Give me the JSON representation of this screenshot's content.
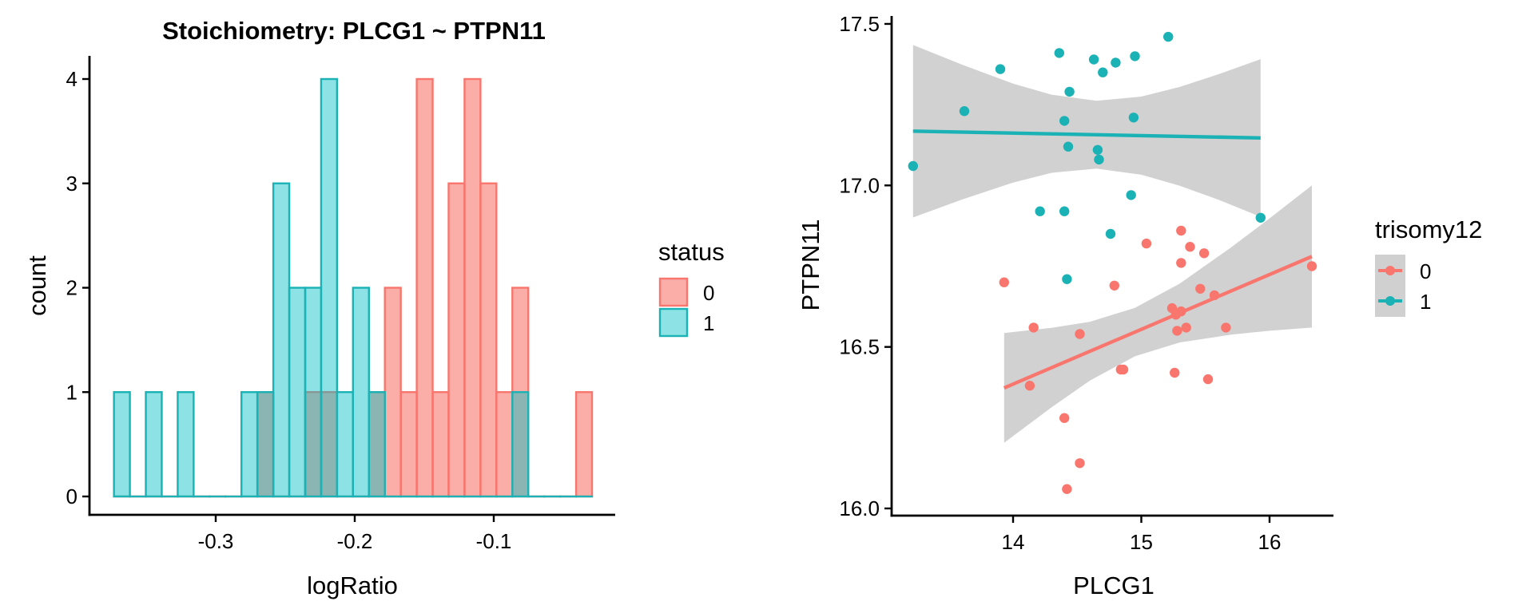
{
  "chart_data": [
    {
      "type": "histogram",
      "title": "Stoichiometry: PLCG1 ~ PTPN11",
      "xlabel": "logRatio",
      "ylabel": "count",
      "xlim": [
        -0.385,
        -0.0185
      ],
      "ylim": [
        -0.18,
        4.2
      ],
      "x_ticks": [
        -0.3,
        -0.2,
        -0.1
      ],
      "x_tick_labels": [
        "-0.3",
        "-0.2",
        "-0.1"
      ],
      "y_ticks": [
        0,
        1,
        2,
        3,
        4
      ],
      "y_tick_labels": [
        "0",
        "1",
        "2",
        "3",
        "4"
      ],
      "bins": {
        "start": -0.3732,
        "width": 0.011463,
        "count": 30
      },
      "grid": false,
      "legend": {
        "title": "status",
        "placement": "right",
        "entries": [
          {
            "label": "0",
            "fill": "#F8766D",
            "stroke": "#F8766D"
          },
          {
            "label": "1",
            "fill": "#00BFC4",
            "stroke": "#1AB2B5"
          }
        ]
      },
      "series": [
        {
          "name": "0",
          "color": "#F8766D",
          "values": [
            0,
            0,
            0,
            0,
            0,
            0,
            0,
            0,
            0,
            1,
            0,
            0,
            1,
            1,
            0,
            0,
            1,
            2,
            1,
            4,
            1,
            3,
            4,
            3,
            1,
            2,
            0,
            0,
            0,
            1
          ]
        },
        {
          "name": "1",
          "color": "#1AB2B5",
          "values": [
            1,
            0,
            1,
            0,
            1,
            0,
            0,
            0,
            1,
            1,
            3,
            2,
            2,
            4,
            1,
            2,
            1,
            0,
            0,
            0,
            0,
            0,
            0,
            0,
            0,
            1,
            0,
            0,
            0,
            0
          ]
        }
      ]
    },
    {
      "type": "scatter",
      "title": "",
      "xlabel": "PLCG1",
      "ylabel": "PTPN11",
      "xlim": [
        13.06,
        16.51
      ],
      "ylim": [
        15.98,
        17.52
      ],
      "x_ticks": [
        14,
        15,
        16
      ],
      "x_tick_labels": [
        "14",
        "15",
        "16"
      ],
      "y_ticks": [
        16.0,
        16.5,
        17.0,
        17.5
      ],
      "y_tick_labels": [
        "16.0",
        "16.5",
        "17.0",
        "17.5"
      ],
      "grid": false,
      "legend": {
        "title": "trisomy12",
        "placement": "right",
        "entries": [
          {
            "label": "0",
            "color": "#F8766D"
          },
          {
            "label": "1",
            "color": "#1AB2B5"
          }
        ]
      },
      "series": [
        {
          "name": "0",
          "color": "#F8766D",
          "points": [
            [
              15.04,
              16.82
            ],
            [
              13.93,
              16.7
            ],
            [
              14.79,
              16.69
            ],
            [
              14.16,
              16.56
            ],
            [
              14.52,
              16.54
            ],
            [
              14.84,
              16.43
            ],
            [
              14.86,
              16.43
            ],
            [
              14.13,
              16.38
            ],
            [
              15.31,
              16.86
            ],
            [
              15.38,
              16.81
            ],
            [
              15.49,
              16.79
            ],
            [
              15.31,
              16.76
            ],
            [
              16.33,
              16.75
            ],
            [
              15.46,
              16.68
            ],
            [
              15.57,
              16.66
            ],
            [
              15.24,
              16.62
            ],
            [
              15.31,
              16.61
            ],
            [
              15.27,
              16.6
            ],
            [
              15.35,
              16.56
            ],
            [
              15.28,
              16.55
            ],
            [
              15.66,
              16.56
            ],
            [
              15.26,
              16.42
            ],
            [
              15.52,
              16.4
            ],
            [
              14.4,
              16.28
            ],
            [
              14.52,
              16.14
            ],
            [
              14.42,
              16.06
            ]
          ],
          "fit": {
            "x": [
              13.93,
              16.33
            ],
            "y": [
              16.373,
              16.78
            ]
          },
          "band": {
            "x": [
              13.93,
              14.3,
              14.6,
              14.95,
              15.3,
              15.7,
              16.0,
              16.33
            ],
            "upper": [
              16.543,
              16.559,
              16.578,
              16.621,
              16.696,
              16.808,
              16.898,
              17.0
            ],
            "lower": [
              16.203,
              16.313,
              16.396,
              16.471,
              16.514,
              16.538,
              16.55,
              16.56
            ]
          }
        },
        {
          "name": "1",
          "color": "#1AB2B5",
          "points": [
            [
              13.22,
              17.06
            ],
            [
              13.62,
              17.23
            ],
            [
              13.9,
              17.36
            ],
            [
              14.36,
              17.41
            ],
            [
              14.44,
              17.29
            ],
            [
              14.4,
              17.2
            ],
            [
              14.43,
              17.12
            ],
            [
              14.63,
              17.39
            ],
            [
              14.7,
              17.35
            ],
            [
              14.8,
              17.38
            ],
            [
              14.66,
              17.11
            ],
            [
              14.67,
              17.08
            ],
            [
              14.95,
              17.4
            ],
            [
              14.94,
              17.21
            ],
            [
              14.92,
              16.97
            ],
            [
              14.21,
              16.92
            ],
            [
              14.4,
              16.92
            ],
            [
              15.21,
              17.46
            ],
            [
              15.93,
              16.9
            ],
            [
              14.76,
              16.85
            ],
            [
              14.42,
              16.71
            ]
          ],
          "fit": {
            "x": [
              13.22,
              15.93
            ],
            "y": [
              17.168,
              17.147
            ]
          },
          "band": {
            "x": [
              13.22,
              13.6,
              14.0,
              14.3,
              14.65,
              15.0,
              15.3,
              15.6,
              15.93
            ],
            "upper": [
              17.435,
              17.374,
              17.315,
              17.281,
              17.262,
              17.275,
              17.305,
              17.344,
              17.391
            ],
            "lower": [
              16.901,
              16.956,
              17.009,
              17.039,
              17.052,
              17.033,
              16.999,
              16.956,
              16.903
            ]
          }
        }
      ]
    }
  ]
}
